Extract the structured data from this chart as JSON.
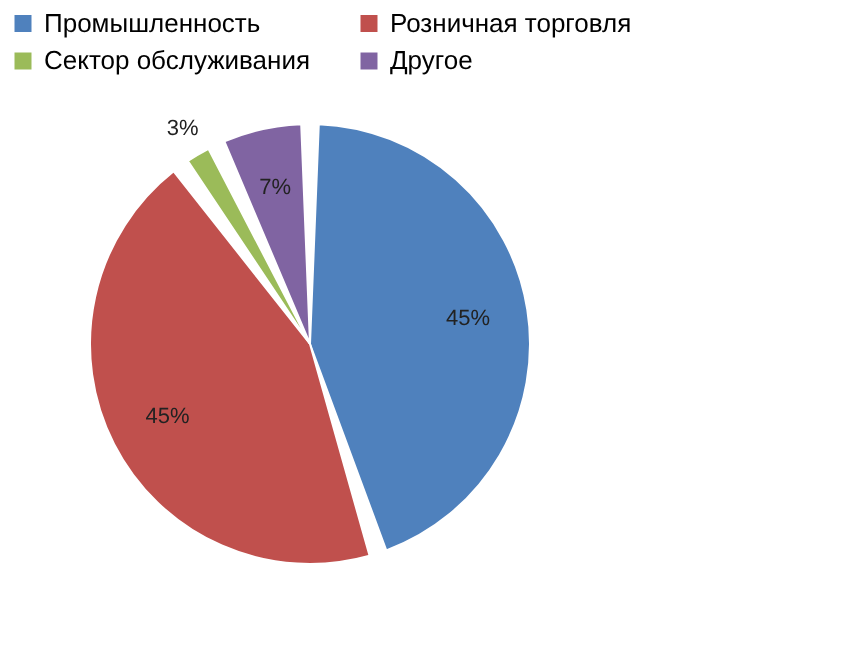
{
  "chart_data": {
    "type": "pie",
    "categories": [
      "Промышленность",
      "Розничная торговля",
      "Сектор обслуживания",
      "Другое"
    ],
    "values": [
      45,
      45,
      3,
      7
    ],
    "colors": [
      "#4f81bd",
      "#c0504d",
      "#9bbb59",
      "#8064a2"
    ],
    "value_labels": [
      "45%",
      "45%",
      "3%",
      "7%"
    ],
    "legend": "top"
  }
}
